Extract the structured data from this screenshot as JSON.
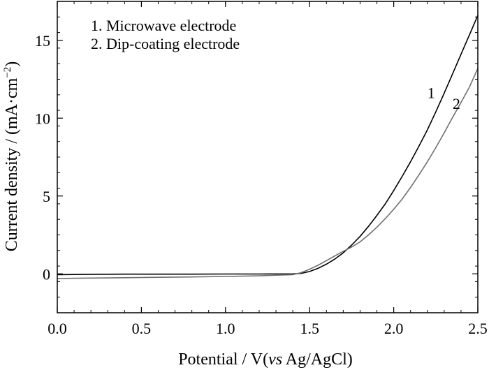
{
  "chart_data": {
    "type": "line",
    "xlabel_prefix": "Potential / V(",
    "xlabel_italic": "vs",
    "xlabel_suffix": " Ag/AgCl)",
    "ylabel_main": "Current density / (mA·cm",
    "ylabel_sup": "−2",
    "ylabel_close": ")",
    "xlim": [
      0.0,
      2.5
    ],
    "ylim": [
      -2.5,
      17.5
    ],
    "xticks": [
      0.0,
      0.5,
      1.0,
      1.5,
      2.0,
      2.5
    ],
    "xtick_labels": [
      "0.0",
      "0.5",
      "1.0",
      "1.5",
      "2.0",
      "2.5"
    ],
    "yticks": [
      0,
      5,
      10,
      15
    ],
    "ytick_labels": [
      "0",
      "5",
      "10",
      "15"
    ],
    "legend_position": "top-left",
    "legend": [
      "1. Microwave electrode",
      "2. Dip-coating electrode"
    ],
    "grid": false,
    "series": [
      {
        "name": "1",
        "color": "#000000",
        "x": [
          0.0,
          0.2,
          0.4,
          0.6,
          0.8,
          1.0,
          1.2,
          1.4,
          1.45,
          1.5,
          1.55,
          1.6,
          1.65,
          1.7,
          1.75,
          1.8,
          1.85,
          1.9,
          1.95,
          2.0,
          2.05,
          2.1,
          2.15,
          2.2,
          2.25,
          2.3,
          2.35,
          2.4,
          2.45,
          2.5
        ],
        "y": [
          -0.05,
          -0.03,
          -0.02,
          -0.02,
          -0.02,
          -0.01,
          -0.01,
          0.0,
          0.03,
          0.15,
          0.35,
          0.62,
          0.95,
          1.35,
          1.85,
          2.4,
          3.05,
          3.75,
          4.5,
          5.35,
          6.25,
          7.2,
          8.2,
          9.25,
          10.4,
          11.6,
          12.85,
          14.1,
          15.35,
          16.6
        ]
      },
      {
        "name": "2",
        "color": "#707070",
        "x": [
          0.0,
          0.2,
          0.4,
          0.6,
          0.8,
          1.0,
          1.2,
          1.4,
          1.45,
          1.5,
          1.55,
          1.6,
          1.65,
          1.7,
          1.75,
          1.8,
          1.85,
          1.9,
          1.95,
          2.0,
          2.05,
          2.1,
          2.15,
          2.2,
          2.25,
          2.3,
          2.35,
          2.4,
          2.45,
          2.5
        ],
        "y": [
          -0.3,
          -0.27,
          -0.25,
          -0.22,
          -0.2,
          -0.17,
          -0.13,
          -0.05,
          0.08,
          0.3,
          0.55,
          0.85,
          1.15,
          1.45,
          1.72,
          2.05,
          2.5,
          3.0,
          3.55,
          4.15,
          4.8,
          5.55,
          6.35,
          7.2,
          8.1,
          9.05,
          10.05,
          11.0,
          12.0,
          13.2
        ]
      }
    ],
    "curve_labels": [
      {
        "text": "1",
        "x": 2.2,
        "y": 11.3
      },
      {
        "text": "2",
        "x": 2.35,
        "y": 10.6
      }
    ]
  }
}
